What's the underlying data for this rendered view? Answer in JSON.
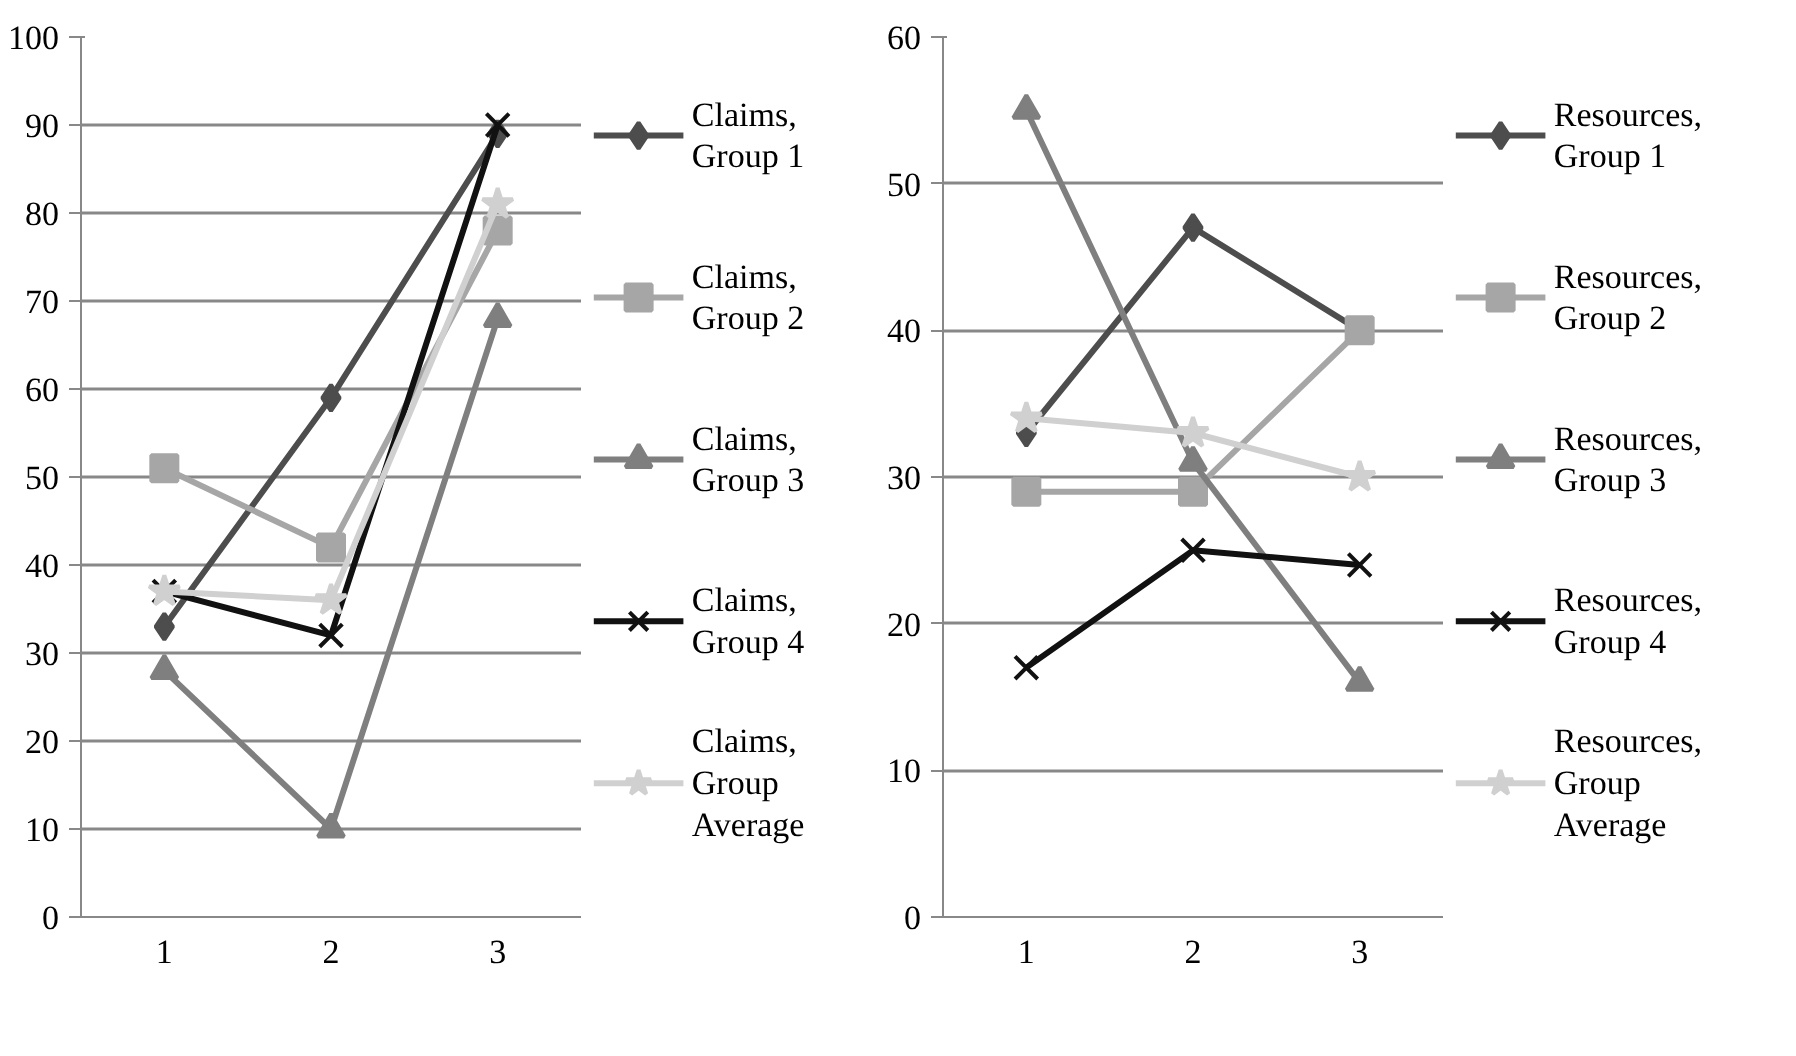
{
  "chart_data": [
    {
      "type": "line",
      "categories": [
        "1",
        "2",
        "3"
      ],
      "ylim": [
        0,
        100
      ],
      "yticks": [
        0,
        10,
        20,
        30,
        40,
        50,
        60,
        70,
        80,
        90,
        100
      ],
      "grid": "y",
      "legend": "right",
      "series": [
        {
          "name": "Claims, Group 1",
          "color": "#4d4d4d",
          "marker": "diamond",
          "values": [
            33,
            59,
            89
          ]
        },
        {
          "name": "Claims, Group 2",
          "color": "#a6a6a6",
          "marker": "square",
          "values": [
            51,
            42,
            78
          ]
        },
        {
          "name": "Claims, Group 3",
          "color": "#7f7f7f",
          "marker": "triangle",
          "values": [
            28,
            10,
            68
          ]
        },
        {
          "name": "Claims, Group 4",
          "color": "#111111",
          "marker": "cross",
          "values": [
            37,
            32,
            90
          ]
        },
        {
          "name": "Claims, Group Average",
          "color": "#d0d0d0",
          "marker": "star",
          "values": [
            37,
            36,
            81
          ]
        }
      ]
    },
    {
      "type": "line",
      "categories": [
        "1",
        "2",
        "3"
      ],
      "ylim": [
        0,
        60
      ],
      "yticks": [
        0,
        10,
        20,
        30,
        40,
        50,
        60
      ],
      "grid": "y",
      "legend": "right",
      "series": [
        {
          "name": "Resources, Group 1",
          "color": "#4d4d4d",
          "marker": "diamond",
          "values": [
            33,
            47,
            40
          ]
        },
        {
          "name": "Resources, Group 2",
          "color": "#a6a6a6",
          "marker": "square",
          "values": [
            29,
            29,
            40
          ]
        },
        {
          "name": "Resources, Group 3",
          "color": "#7f7f7f",
          "marker": "triangle",
          "values": [
            55,
            31,
            16
          ]
        },
        {
          "name": "Resources, Group 4",
          "color": "#111111",
          "marker": "cross",
          "values": [
            17,
            25,
            24
          ]
        },
        {
          "name": "Resources, Group Average",
          "color": "#d0d0d0",
          "marker": "star",
          "values": [
            34,
            33,
            30
          ]
        }
      ]
    }
  ]
}
